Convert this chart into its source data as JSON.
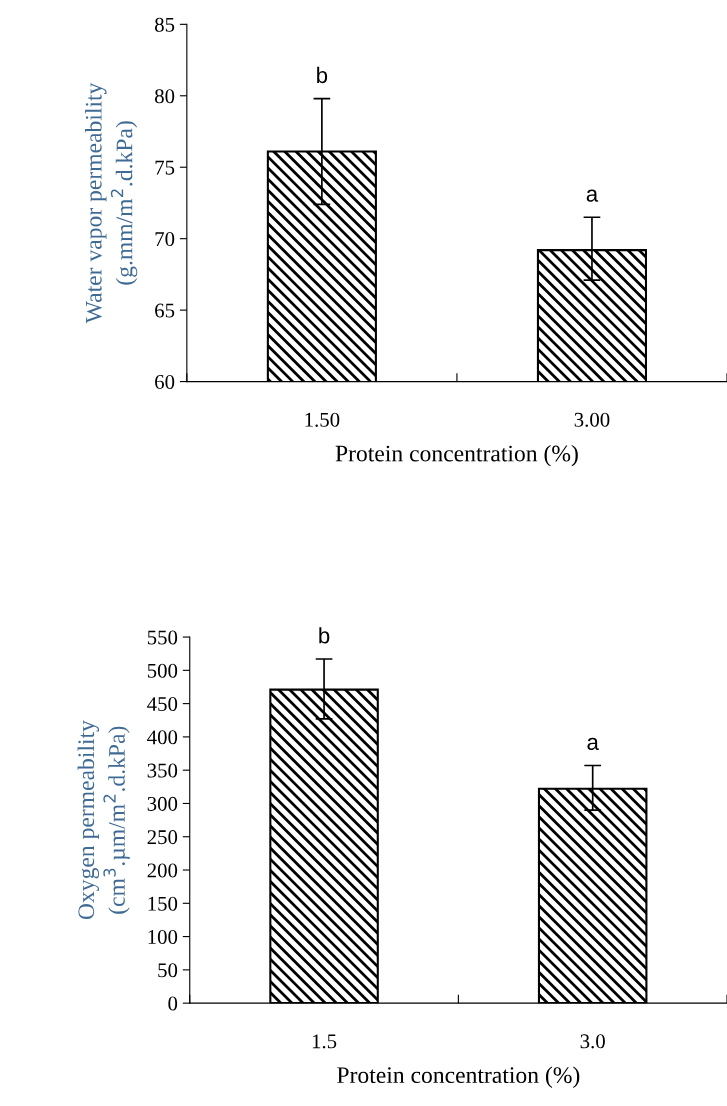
{
  "chart_data": [
    {
      "type": "bar",
      "categories": [
        "1.50",
        "3.00"
      ],
      "values": [
        76.1,
        69.2
      ],
      "errors": [
        [
          72.4,
          79.8
        ],
        [
          67.1,
          71.5
        ]
      ],
      "color": "#000000",
      "xlabel": "Protein concentration (%)",
      "ylabel": "Water vapor permeability\n(g.mm/m$^{2}$.d.kPa)",
      "ylim": [
        60,
        85
      ],
      "yticks": [
        60,
        65,
        70,
        75,
        80,
        85
      ],
      "annotations": [
        {
          "text": "b",
          "x": "1.50",
          "y": 79.8
        },
        {
          "text": "a",
          "x": "3.00",
          "y": 71.5
        }
      ],
      "grid": false,
      "legend": false
    },
    {
      "type": "bar",
      "categories": [
        "1.5",
        "3.0"
      ],
      "values": [
        471,
        322
      ],
      "errors": [
        [
          427,
          517
        ],
        [
          290,
          357
        ]
      ],
      "color": "#000000",
      "xlabel": "Protein concentration (%)",
      "ylabel": "Oxygen permeability\n(cm$^{3}$.µm/m$^{2}$.d.kPa)",
      "ylim": [
        0,
        550
      ],
      "yticks": [
        0,
        50,
        100,
        150,
        200,
        250,
        300,
        350,
        400,
        450,
        500,
        550
      ],
      "annotations": [
        {
          "text": "b",
          "x": "1.5",
          "y": 517
        },
        {
          "text": "a",
          "x": "3.0",
          "y": 357
        }
      ],
      "grid": false,
      "legend": false
    }
  ]
}
